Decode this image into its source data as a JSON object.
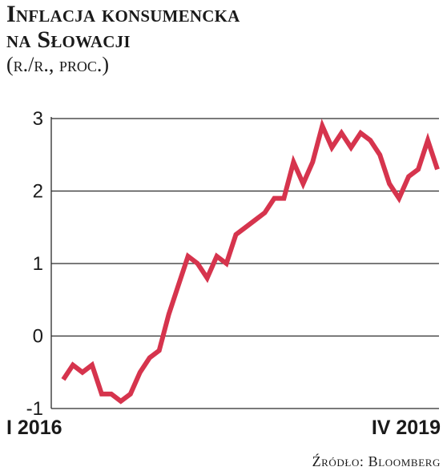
{
  "header": {
    "title_line1": "Inflacja konsumencka",
    "title_line2": "na Słowacji",
    "subtitle": "(r./r., proc.)"
  },
  "source": "Źródło: Bloomberg",
  "chart_data": {
    "type": "line",
    "title": "Inflacja konsumencka na Słowacji",
    "ylabel": "(r./r., proc.)",
    "ylim": [
      -1,
      3
    ],
    "yticks": [
      "3",
      "2",
      "1",
      "0",
      "-1"
    ],
    "x_start_label": "I 2016",
    "x_end_label": "IV 2019",
    "grid": true,
    "line_color": "#d6344d",
    "series": [
      {
        "name": "",
        "x": [
          "2016-01",
          "2016-02",
          "2016-03",
          "2016-04",
          "2016-05",
          "2016-06",
          "2016-07",
          "2016-08",
          "2016-09",
          "2016-10",
          "2016-11",
          "2016-12",
          "2017-01",
          "2017-02",
          "2017-03",
          "2017-04",
          "2017-05",
          "2017-06",
          "2017-07",
          "2017-08",
          "2017-09",
          "2017-10",
          "2017-11",
          "2017-12",
          "2018-01",
          "2018-02",
          "2018-03",
          "2018-04",
          "2018-05",
          "2018-06",
          "2018-07",
          "2018-08",
          "2018-09",
          "2018-10",
          "2018-11",
          "2018-12",
          "2019-01",
          "2019-02",
          "2019-03",
          "2019-04"
        ],
        "values": [
          -0.6,
          -0.4,
          -0.5,
          -0.4,
          -0.8,
          -0.8,
          -0.9,
          -0.8,
          -0.5,
          -0.3,
          -0.2,
          0.3,
          0.7,
          1.1,
          1.0,
          0.8,
          1.1,
          1.0,
          1.4,
          1.5,
          1.6,
          1.7,
          1.9,
          1.9,
          2.4,
          2.1,
          2.4,
          2.9,
          2.6,
          2.8,
          2.6,
          2.8,
          2.7,
          2.5,
          2.1,
          1.9,
          2.2,
          2.3,
          2.7,
          2.3
        ]
      }
    ]
  }
}
